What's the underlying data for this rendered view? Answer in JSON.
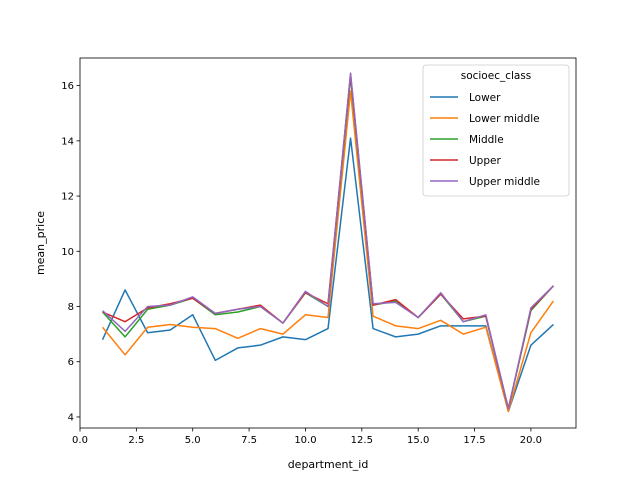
{
  "chart_data": {
    "type": "line",
    "xlabel": "department_id",
    "ylabel": "mean_price",
    "xlim": [
      0,
      22
    ],
    "ylim": [
      3.6,
      17
    ],
    "xticks": [
      0.0,
      2.5,
      5.0,
      7.5,
      10.0,
      12.5,
      15.0,
      17.5,
      20.0
    ],
    "xtick_labels": [
      "0.0",
      "2.5",
      "5.0",
      "7.5",
      "10.0",
      "12.5",
      "15.0",
      "17.5",
      "20.0"
    ],
    "yticks": [
      4,
      6,
      8,
      10,
      12,
      14,
      16
    ],
    "ytick_labels": [
      "4",
      "6",
      "8",
      "10",
      "12",
      "14",
      "16"
    ],
    "grid": false,
    "legend": {
      "title": "socioec_class",
      "placement": "top-right"
    },
    "x": [
      1,
      2,
      3,
      4,
      5,
      6,
      7,
      8,
      9,
      10,
      11,
      12,
      13,
      14,
      15,
      16,
      17,
      18,
      19,
      20,
      21
    ],
    "series": [
      {
        "name": "Lower",
        "color": "#1f77b4",
        "values": [
          6.8,
          8.6,
          7.05,
          7.15,
          7.7,
          6.05,
          6.5,
          6.6,
          6.9,
          6.8,
          7.2,
          14.1,
          7.2,
          6.9,
          7.0,
          7.3,
          7.3,
          7.3,
          4.2,
          6.6,
          7.35
        ]
      },
      {
        "name": "Lower middle",
        "color": "#ff7f0e",
        "values": [
          7.25,
          6.25,
          7.25,
          7.35,
          7.25,
          7.2,
          6.85,
          7.2,
          7.0,
          7.7,
          7.6,
          15.8,
          7.65,
          7.3,
          7.2,
          7.5,
          7.0,
          7.25,
          4.2,
          7.05,
          8.2
        ]
      },
      {
        "name": "Middle",
        "color": "#2ca02c",
        "values": [
          7.8,
          6.9,
          7.9,
          8.05,
          8.3,
          7.7,
          7.8,
          8.0,
          7.4,
          8.5,
          8.0,
          16.3,
          8.05,
          8.2,
          7.6,
          8.45,
          7.45,
          7.65,
          4.3,
          7.85,
          8.75
        ]
      },
      {
        "name": "Upper",
        "color": "#d62728",
        "values": [
          7.8,
          7.45,
          7.95,
          8.1,
          8.3,
          7.75,
          7.9,
          8.05,
          7.4,
          8.5,
          8.1,
          16.4,
          8.05,
          8.25,
          7.6,
          8.45,
          7.55,
          7.65,
          4.3,
          7.9,
          8.75
        ]
      },
      {
        "name": "Upper middle",
        "color": "#9467bd",
        "values": [
          7.85,
          7.1,
          8.0,
          8.05,
          8.35,
          7.75,
          7.9,
          8.0,
          7.4,
          8.55,
          8.0,
          16.45,
          8.1,
          8.15,
          7.6,
          8.5,
          7.45,
          7.7,
          4.3,
          7.95,
          8.75
        ]
      }
    ]
  }
}
